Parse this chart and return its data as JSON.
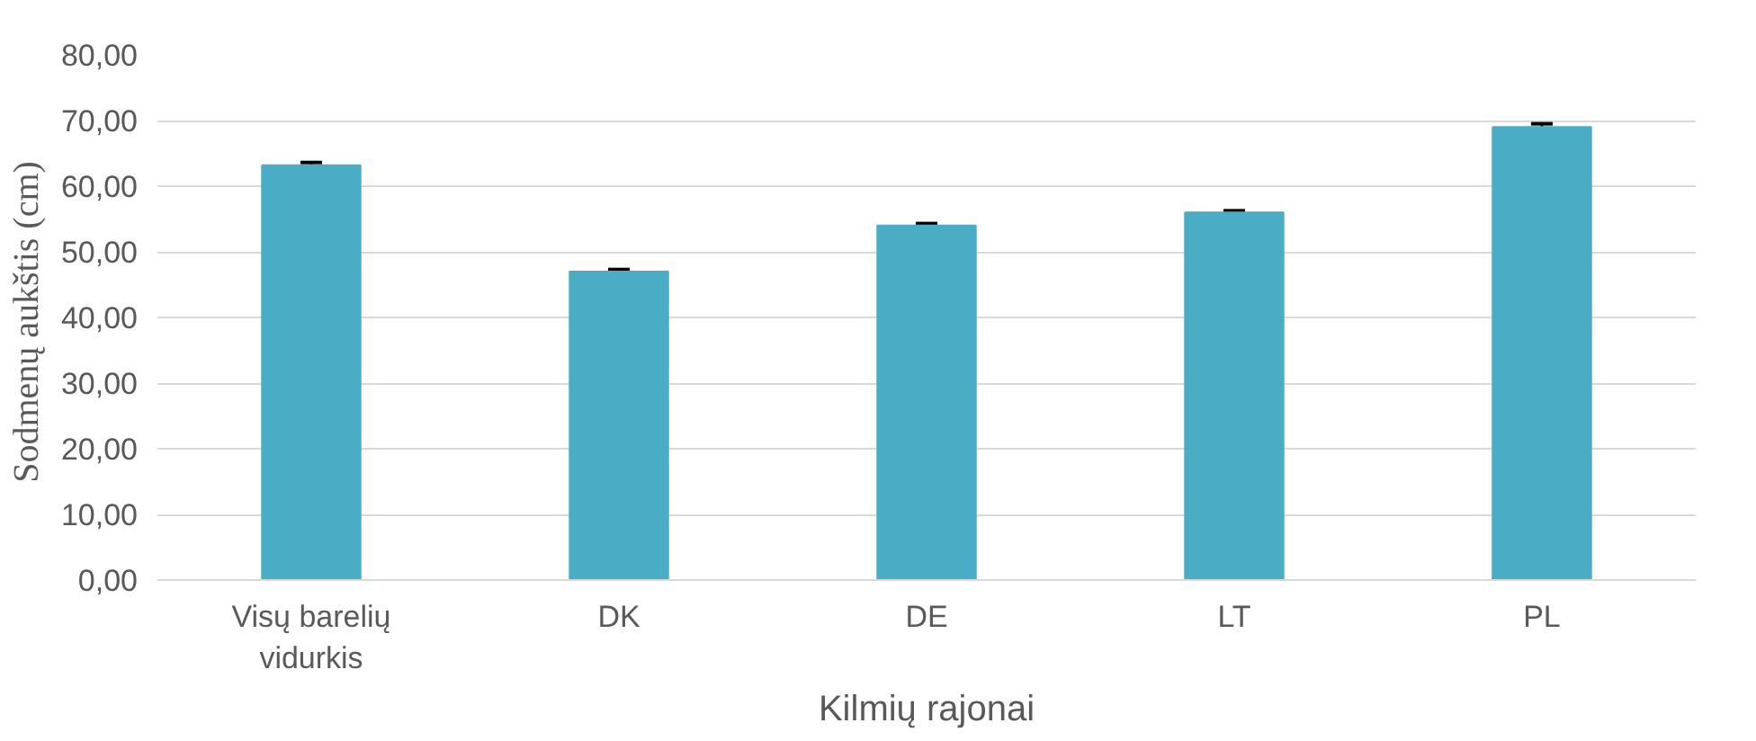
{
  "chart_data": {
    "type": "bar",
    "xlabel": "Kilmių rajonai",
    "ylabel": "Sodmenų aukštis  (cm)",
    "categories": [
      "Visų barelių vidurkis",
      "DK",
      "DE",
      "LT",
      "PL"
    ],
    "values": [
      63.2,
      47.0,
      54.0,
      56.0,
      69.0
    ],
    "errors": [
      0.4,
      0.3,
      0.3,
      0.25,
      0.5
    ],
    "color": "#4bacc6",
    "ylim": [
      0,
      80
    ],
    "yticks": [
      {
        "value": 0,
        "label": "0,00"
      },
      {
        "value": 10,
        "label": "10,00"
      },
      {
        "value": 20,
        "label": "20,00"
      },
      {
        "value": 30,
        "label": "30,00"
      },
      {
        "value": 40,
        "label": "40,00"
      },
      {
        "value": 50,
        "label": "50,00"
      },
      {
        "value": 60,
        "label": "60,00"
      },
      {
        "value": 70,
        "label": "70,00"
      },
      {
        "value": 80,
        "label": "80,00"
      }
    ],
    "grid": "y"
  }
}
